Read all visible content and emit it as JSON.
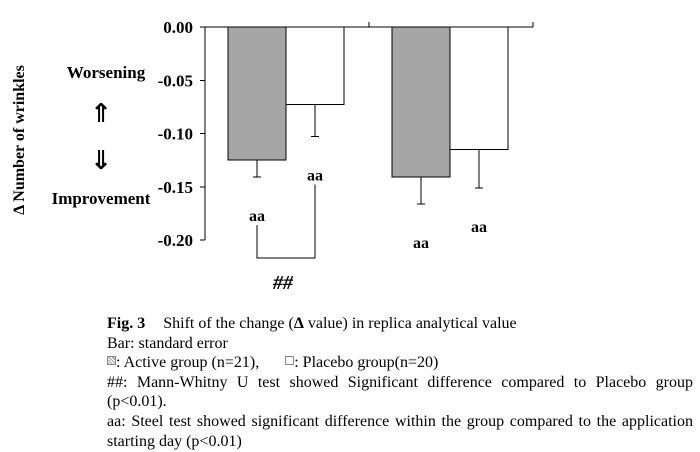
{
  "chart_data": {
    "type": "bar",
    "ylabel": "Δ Number of wrinkles",
    "ylim": [
      -0.2,
      0.0
    ],
    "grid": false,
    "yticks": [
      {
        "value": 0.0,
        "label": "0.00"
      },
      {
        "value": -0.05,
        "label": "-0.05"
      },
      {
        "value": -0.1,
        "label": "-0.10"
      },
      {
        "value": -0.15,
        "label": "-0.15"
      },
      {
        "value": -0.2,
        "label": "-0.20"
      }
    ],
    "series": [
      {
        "name": "Active group (n=21)",
        "color": "#a6a6a6",
        "values": [
          -0.125,
          -0.141
        ],
        "errors": [
          0.016,
          0.025
        ],
        "labels": [
          "aa",
          "aa"
        ]
      },
      {
        "name": "Placebo group(n=20)",
        "color": "#ffffff",
        "values": [
          -0.073,
          -0.115
        ],
        "errors": [
          0.03,
          0.036
        ],
        "labels": [
          "aa",
          "aa"
        ]
      }
    ],
    "comparisons": [
      {
        "category_index": 0,
        "series": [
          0,
          1
        ],
        "label": "##"
      }
    ],
    "annotations": {
      "worsening": "Worsening",
      "up_arrow": "⇑",
      "down_arrow": "⇓",
      "improvement": "Improvement"
    }
  },
  "caption": {
    "fig_label": "Fig. 3",
    "title_before": "Shift of the change (",
    "title_delta": "Δ",
    "title_after": " value) in replica analytical value",
    "bar_note": "Bar: standard error",
    "legend_colon": ": ",
    "legend_comma": ",",
    "comparison_note": "##: Mann-Whitny U test showed Significant difference compared to Placebo group",
    "comparison_note_cont": "(p<0.01).",
    "steel_note": "aa: Steel test showed significant difference within the group compared to the application",
    "steel_note_cont": "starting day (p<0.01)"
  }
}
